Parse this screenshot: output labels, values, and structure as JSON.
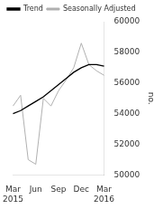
{
  "chart_data": {
    "type": "line",
    "ylabel": "no.",
    "categories": [
      "Mar\n2015",
      null,
      null,
      "Jun",
      null,
      null,
      "Sep",
      null,
      null,
      "Dec",
      null,
      null,
      "Mar\n2016"
    ],
    "series": [
      {
        "name": "Trend",
        "color": "#000000",
        "values": [
          54000,
          54200,
          54500,
          54800,
          55100,
          55500,
          55900,
          56300,
          56700,
          57000,
          57200,
          57200,
          57100
        ]
      },
      {
        "name": "Seasonally Adjusted",
        "color": "#b0b0b0",
        "values": [
          54500,
          55200,
          51000,
          50700,
          55000,
          54500,
          55500,
          56200,
          57000,
          58600,
          57200,
          56800,
          56500
        ]
      }
    ],
    "ylim": [
      50000,
      60000
    ],
    "yticks": [
      50000,
      52000,
      54000,
      56000,
      58000,
      60000
    ],
    "grid": false,
    "legend": "upper left"
  }
}
